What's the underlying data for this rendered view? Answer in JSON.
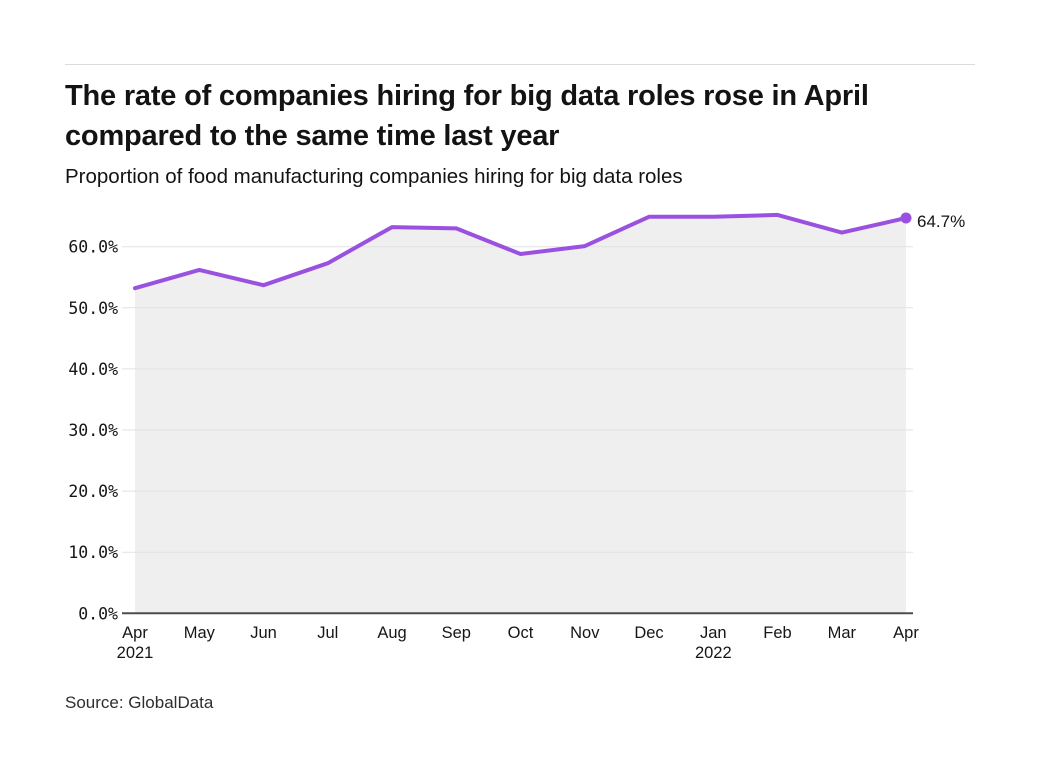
{
  "header": {
    "title": "The rate of companies hiring for big data roles rose in April compared to the same time last year",
    "subtitle": "Proportion of food manufacturing companies hiring for big data roles"
  },
  "chart_data": {
    "type": "line",
    "area": true,
    "title": "The rate of companies hiring for big data roles rose in April compared to the same time last year",
    "subtitle": "Proportion of food manufacturing companies hiring for big data roles",
    "categories": [
      "Apr 2021",
      "May 2021",
      "Jun 2021",
      "Jul 2021",
      "Aug 2021",
      "Sep 2021",
      "Oct 2021",
      "Nov 2021",
      "Dec 2021",
      "Jan 2022",
      "Feb 2022",
      "Mar 2022",
      "Apr 2022"
    ],
    "values": [
      53.2,
      56.2,
      53.7,
      57.3,
      63.2,
      63.0,
      58.8,
      60.1,
      64.9,
      64.9,
      65.2,
      62.3,
      64.7
    ],
    "x_ticks": [
      {
        "label": "Apr",
        "year": "2021"
      },
      {
        "label": "May"
      },
      {
        "label": "Jun"
      },
      {
        "label": "Jul"
      },
      {
        "label": "Aug"
      },
      {
        "label": "Sep"
      },
      {
        "label": "Oct"
      },
      {
        "label": "Nov"
      },
      {
        "label": "Dec"
      },
      {
        "label": "Jan",
        "year": "2022"
      },
      {
        "label": "Feb"
      },
      {
        "label": "Mar"
      },
      {
        "label": "Apr"
      }
    ],
    "y_ticks": [
      {
        "value": 0,
        "label": "0.0%"
      },
      {
        "value": 10,
        "label": "10.0%"
      },
      {
        "value": 20,
        "label": "20.0%"
      },
      {
        "value": 30,
        "label": "30.0%"
      },
      {
        "value": 40,
        "label": "40.0%"
      },
      {
        "value": 50,
        "label": "50.0%"
      },
      {
        "value": 60,
        "label": "60.0%"
      }
    ],
    "ylim": [
      0,
      66
    ],
    "xlabel": "",
    "ylabel": "",
    "grid": "horizontal",
    "legend": "none",
    "end_label": "64.7%",
    "colors": {
      "line": "#9b51e0",
      "fill": "#efefef",
      "grid": "#e2e2e2",
      "axis": "#4d4d4d",
      "text": "#161616"
    }
  },
  "footer": {
    "source": "Source: GlobalData"
  }
}
